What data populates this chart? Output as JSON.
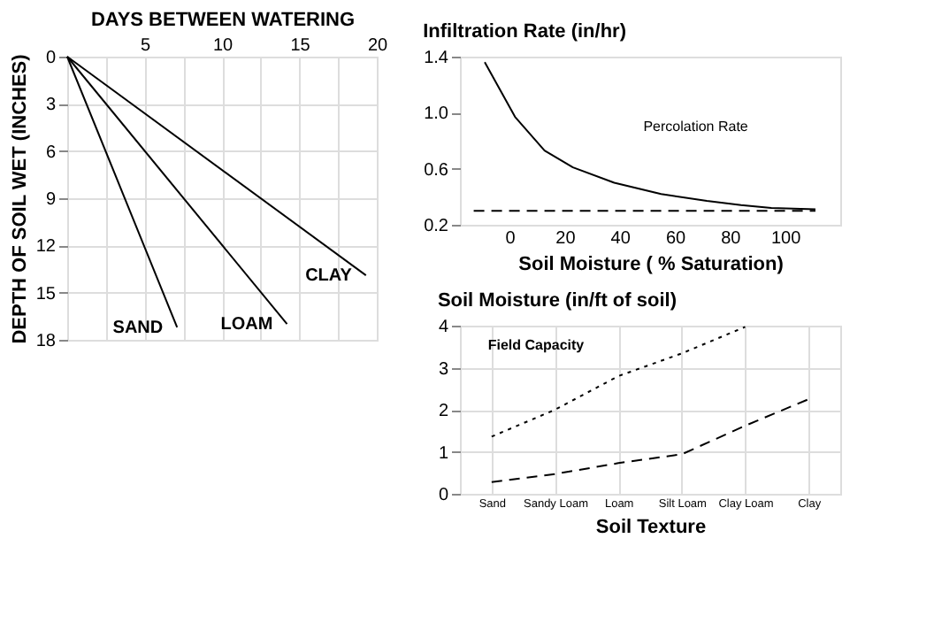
{
  "chart_data": [
    {
      "type": "line",
      "xlabel": "DAYS BETWEEN WATERING",
      "ylabel": "DEPTH OF SOIL WET (INCHES)",
      "xlim": [
        0,
        20
      ],
      "xticks": [
        {
          "value": 2.5,
          "label": null
        },
        5,
        {
          "value": 7.5,
          "label": null
        },
        10,
        {
          "value": 12.5,
          "label": null
        },
        15,
        {
          "value": 17.5,
          "label": null
        },
        20
      ],
      "ylim": [
        18,
        0
      ],
      "yticks": [
        0,
        3,
        6,
        9,
        12,
        15,
        18
      ],
      "grid": true,
      "marker": "none",
      "series": [
        {
          "name": "SAND",
          "color": "#000000",
          "x": [
            0,
            7.1
          ],
          "values": [
            0,
            17.2
          ]
        },
        {
          "name": "LOAM",
          "color": "#000000",
          "x": [
            0,
            14.2
          ],
          "values": [
            0,
            17.0
          ]
        },
        {
          "name": "CLAY",
          "color": "#000000",
          "x": [
            0,
            19.3
          ],
          "values": [
            0,
            13.9
          ]
        }
      ]
    },
    {
      "type": "line",
      "title": "Infiltration Rate (in/hr)",
      "xlabel": "Soil Moisture ( % Saturation)",
      "xlim": [
        -18,
        120
      ],
      "xticks": [
        0,
        20,
        40,
        60,
        80,
        100
      ],
      "ylim": [
        0.2,
        1.4
      ],
      "yticks": [
        0.2,
        0.6,
        {
          "value": 1,
          "label": "1.0"
        },
        1.4
      ],
      "grid": false,
      "marker": "none",
      "annotations": [
        "Percolation Rate"
      ],
      "series": [
        {
          "color": "#000000",
          "line_style": "solid",
          "x": [
            -9,
            2,
            12.7,
            23,
            38,
            55,
            71.6,
            84,
            95,
            111
          ],
          "values": [
            1.36,
            0.97,
            0.73,
            0.61,
            0.5,
            0.42,
            0.37,
            0.34,
            0.32,
            0.31
          ]
        },
        {
          "color": "#000000",
          "line_style": "dashed",
          "x": [
            -13,
            111
          ],
          "values": [
            0.3,
            0.3
          ]
        }
      ]
    },
    {
      "type": "line",
      "title": "Soil Moisture (in/ft of soil)",
      "xlabel": "Soil Texture",
      "categories": [
        "Sand",
        "Sandy Loam",
        "Loam",
        "Silt Loam",
        "Clay Loam",
        "Clay"
      ],
      "ylim": [
        0,
        4
      ],
      "yticks": [
        0,
        1,
        2,
        3,
        4
      ],
      "grid": true,
      "marker": "none",
      "annotations": [
        "Field Capacity"
      ],
      "series": [
        {
          "color": "#000000",
          "line_style": "dotted",
          "values": [
            1.36,
            2.0,
            2.8,
            3.34,
            3.97,
            null
          ]
        },
        {
          "color": "#000000",
          "line_style": "dashed",
          "values": [
            0.28,
            0.47,
            0.73,
            0.94,
            1.62,
            2.25
          ]
        }
      ]
    }
  ]
}
